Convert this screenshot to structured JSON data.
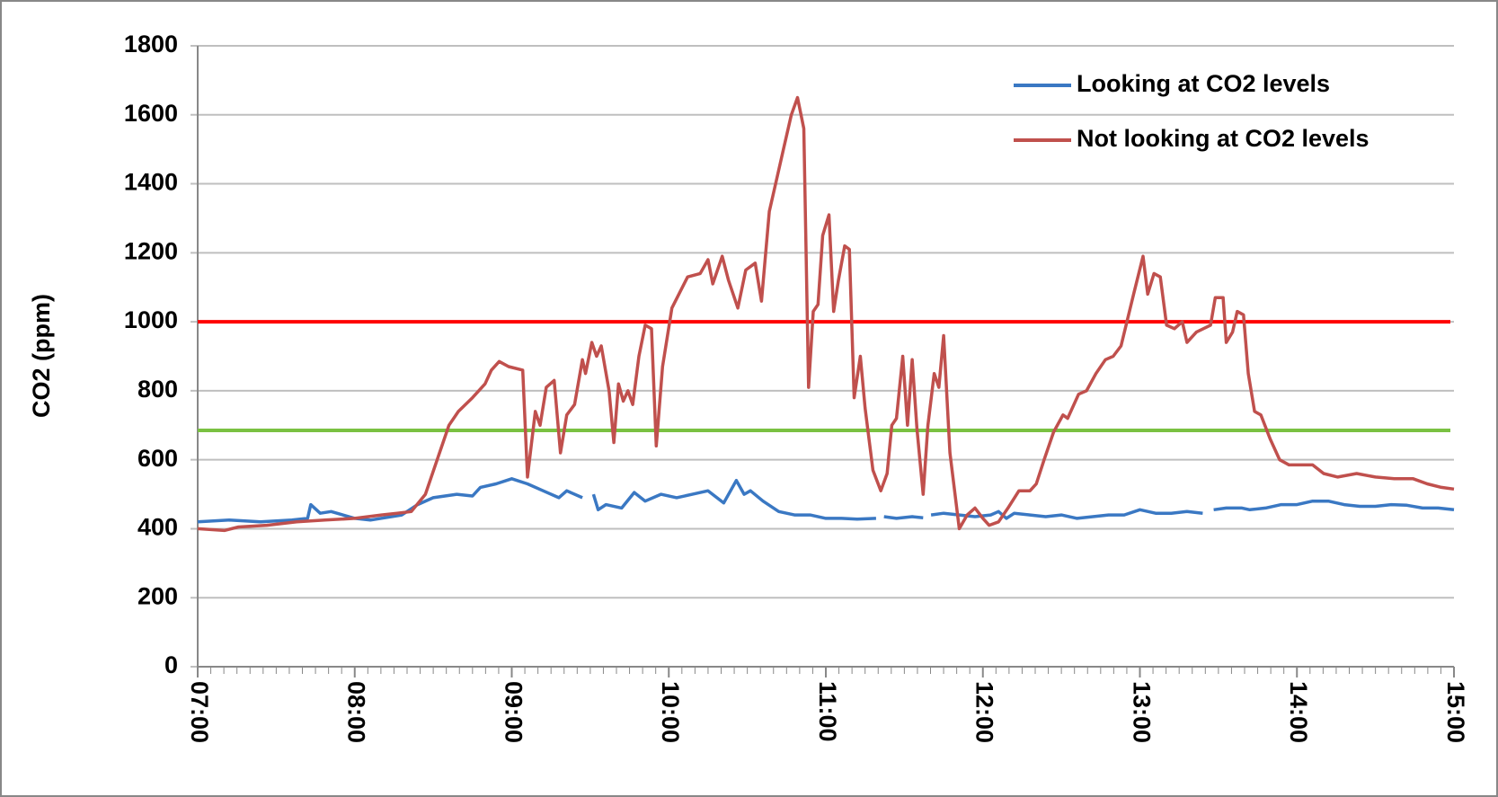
{
  "chart_data": {
    "type": "line",
    "ylabel": "CO2 (ppm)",
    "ylim": [
      0,
      1800
    ],
    "yticks": [
      0,
      200,
      400,
      600,
      800,
      1000,
      1200,
      1400,
      1600,
      1800
    ],
    "xlim": [
      7,
      15
    ],
    "xticks": [
      {
        "value": 7,
        "label": "07:00"
      },
      {
        "value": 8,
        "label": "08:00"
      },
      {
        "value": 9,
        "label": "09:00"
      },
      {
        "value": 10,
        "label": "10:00"
      },
      {
        "value": 11,
        "label": "11:00"
      },
      {
        "value": 12,
        "label": "12:00"
      },
      {
        "value": 13,
        "label": "13:00"
      },
      {
        "value": 14,
        "label": "14:00"
      },
      {
        "value": 15,
        "label": "15:00"
      }
    ],
    "grid": true,
    "legend": "upper right",
    "reference_lines": [
      {
        "value": 1000,
        "color": "#ff0000"
      },
      {
        "value": 685,
        "color": "#7ac142"
      }
    ],
    "series": [
      {
        "name": "Looking at CO2 levels",
        "color": "#3a78c3",
        "x": [
          7.0,
          7.2,
          7.4,
          7.6,
          7.7,
          7.72,
          7.78,
          7.85,
          8.0,
          8.1,
          8.3,
          8.4,
          8.5,
          8.65,
          8.75,
          8.8,
          8.9,
          9.0,
          9.1,
          9.2,
          9.3,
          9.35,
          9.45,
          9.48,
          9.52,
          9.55,
          9.6,
          9.7,
          9.78,
          9.85,
          9.95,
          10.05,
          10.15,
          10.25,
          10.35,
          10.43,
          10.48,
          10.52,
          10.6,
          10.7,
          10.8,
          10.9,
          11.0,
          11.1,
          11.2,
          11.32,
          11.35,
          11.37,
          11.45,
          11.55,
          11.62,
          11.65,
          11.67,
          11.75,
          11.85,
          11.95,
          12.05,
          12.1,
          12.15,
          12.2,
          12.3,
          12.4,
          12.5,
          12.6,
          12.7,
          12.8,
          12.9,
          13.0,
          13.1,
          13.2,
          13.3,
          13.4,
          13.44,
          13.47,
          13.55,
          13.65,
          13.7,
          13.8,
          13.9,
          14.0,
          14.1,
          14.2,
          14.3,
          14.4,
          14.5,
          14.6,
          14.7,
          14.8,
          14.9,
          15.0
        ],
        "values": [
          420,
          425,
          420,
          425,
          430,
          470,
          445,
          450,
          430,
          425,
          440,
          470,
          490,
          500,
          495,
          520,
          530,
          545,
          530,
          510,
          490,
          510,
          490,
          null,
          500,
          455,
          470,
          460,
          505,
          480,
          500,
          490,
          500,
          510,
          475,
          540,
          500,
          510,
          480,
          450,
          440,
          440,
          430,
          430,
          428,
          430,
          null,
          435,
          430,
          435,
          432,
          null,
          440,
          445,
          440,
          435,
          440,
          450,
          430,
          445,
          440,
          435,
          440,
          430,
          435,
          440,
          440,
          455,
          445,
          445,
          450,
          445,
          null,
          455,
          460,
          460,
          455,
          460,
          470,
          470,
          480,
          480,
          470,
          465,
          465,
          470,
          468,
          460,
          460,
          455
        ]
      },
      {
        "name": "Not looking at CO2 levels",
        "color": "#c0504d",
        "x": [
          7.0,
          7.17,
          7.26,
          7.44,
          7.63,
          7.81,
          8.0,
          8.17,
          8.27,
          8.36,
          8.45,
          8.54,
          8.6,
          8.66,
          8.75,
          8.83,
          8.87,
          8.92,
          8.98,
          9.07,
          9.1,
          9.15,
          9.18,
          9.22,
          9.27,
          9.31,
          9.35,
          9.4,
          9.45,
          9.47,
          9.51,
          9.54,
          9.57,
          9.62,
          9.65,
          9.68,
          9.71,
          9.74,
          9.77,
          9.81,
          9.85,
          9.89,
          9.92,
          9.96,
          10.02,
          10.12,
          10.2,
          10.25,
          10.28,
          10.34,
          10.38,
          10.44,
          10.49,
          10.55,
          10.59,
          10.64,
          10.68,
          10.73,
          10.78,
          10.82,
          10.86,
          10.89,
          10.92,
          10.95,
          10.98,
          11.02,
          11.05,
          11.08,
          11.12,
          11.15,
          11.18,
          11.22,
          11.25,
          11.3,
          11.35,
          11.39,
          11.42,
          11.45,
          11.49,
          11.52,
          11.55,
          11.58,
          11.62,
          11.65,
          11.69,
          11.72,
          11.75,
          11.79,
          11.85,
          11.9,
          11.95,
          12.0,
          12.04,
          12.1,
          12.16,
          12.23,
          12.3,
          12.34,
          12.39,
          12.45,
          12.51,
          12.54,
          12.61,
          12.66,
          12.72,
          12.78,
          12.83,
          12.88,
          12.96,
          13.02,
          13.05,
          13.09,
          13.13,
          13.17,
          13.22,
          13.27,
          13.3,
          13.36,
          13.45,
          13.48,
          13.53,
          13.55,
          13.59,
          13.62,
          13.66,
          13.69,
          13.73,
          13.77,
          13.83,
          13.89,
          13.95,
          14.1,
          14.17,
          14.26,
          14.38,
          14.5,
          14.62,
          14.74,
          14.83,
          14.92,
          15.0
        ],
        "values": [
          400,
          395,
          405,
          410,
          420,
          425,
          430,
          440,
          445,
          450,
          500,
          620,
          700,
          740,
          780,
          820,
          860,
          885,
          870,
          860,
          550,
          740,
          700,
          810,
          830,
          620,
          730,
          760,
          890,
          850,
          940,
          900,
          930,
          800,
          650,
          820,
          770,
          800,
          760,
          900,
          990,
          980,
          640,
          870,
          1040,
          1130,
          1140,
          1180,
          1110,
          1190,
          1120,
          1040,
          1150,
          1170,
          1060,
          1320,
          1400,
          1500,
          1600,
          1650,
          1560,
          810,
          1030,
          1050,
          1250,
          1310,
          1030,
          1120,
          1220,
          1210,
          780,
          900,
          750,
          570,
          510,
          560,
          700,
          720,
          900,
          700,
          890,
          690,
          500,
          700,
          850,
          810,
          960,
          620,
          400,
          440,
          460,
          430,
          410,
          420,
          460,
          510,
          510,
          530,
          600,
          680,
          730,
          720,
          790,
          800,
          850,
          890,
          900,
          930,
          1080,
          1190,
          1080,
          1140,
          1130,
          990,
          980,
          1000,
          940,
          970,
          990,
          1070,
          1070,
          940,
          970,
          1030,
          1020,
          850,
          740,
          730,
          660,
          600,
          585,
          585,
          560,
          550,
          560,
          550,
          545,
          545,
          530,
          520,
          515
        ]
      }
    ]
  }
}
